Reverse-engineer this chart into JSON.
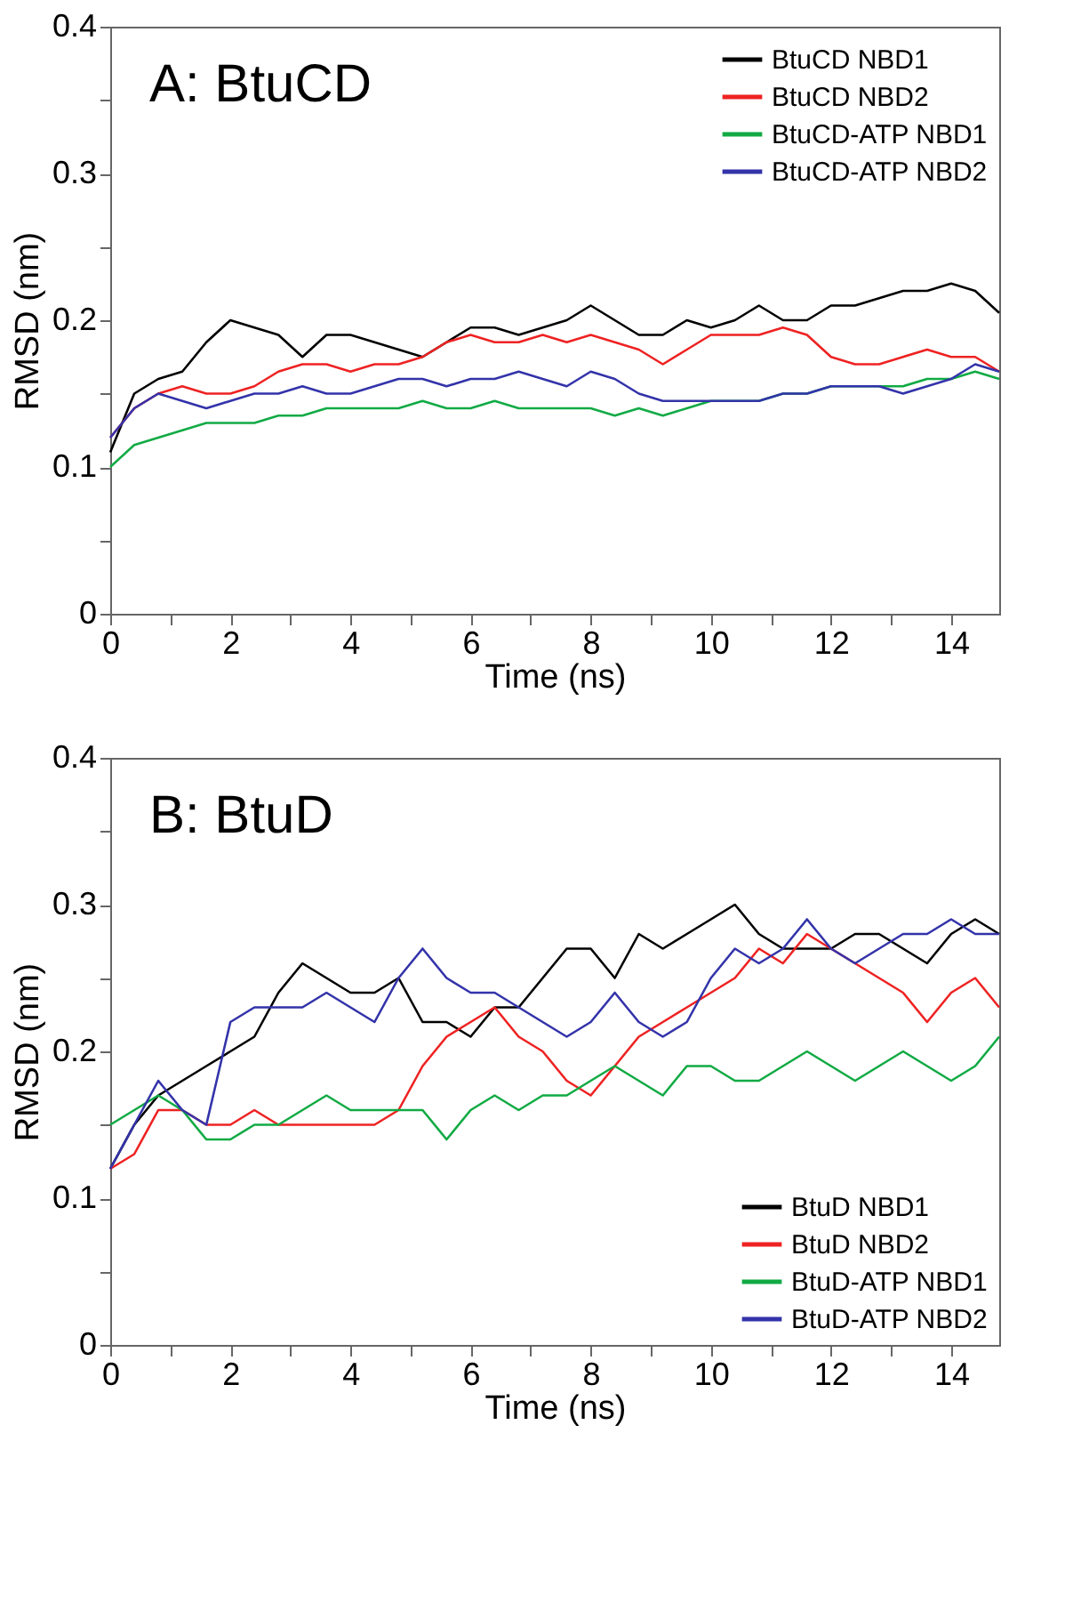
{
  "chart_data": [
    {
      "type": "line",
      "title": null,
      "annotations": [
        "A: BtuCD"
      ],
      "xlabel": "Time (ns)",
      "ylabel": "RMSD (nm)",
      "legend": "top right",
      "grid": false,
      "marker": "none",
      "line_style": "solid",
      "x": [
        0,
        0.4,
        0.8,
        1.2,
        1.6,
        2.0,
        2.4,
        2.8,
        3.2,
        3.6,
        4.0,
        4.4,
        4.8,
        5.2,
        5.6,
        6.0,
        6.4,
        6.8,
        7.2,
        7.6,
        8.0,
        8.4,
        8.8,
        9.2,
        9.6,
        10.0,
        10.4,
        10.8,
        11.2,
        11.6,
        12.0,
        12.4,
        12.8,
        13.2,
        13.6,
        14.0,
        14.4,
        14.8
      ],
      "xlim": [
        0,
        14.8
      ],
      "xticks": [
        0,
        {
          "value": 1,
          "label": null
        },
        2,
        {
          "value": 3,
          "label": null
        },
        4,
        {
          "value": 5,
          "label": null
        },
        6,
        {
          "value": 7,
          "label": null
        },
        8,
        {
          "value": 9,
          "label": null
        },
        10,
        {
          "value": 11,
          "label": null
        },
        12,
        {
          "value": 13,
          "label": null
        },
        14
      ],
      "ylim": [
        0,
        0.4
      ],
      "yticks": [
        0,
        {
          "value": 0.05,
          "label": null
        },
        0.1,
        {
          "value": 0.15,
          "label": null
        },
        0.2,
        {
          "value": 0.25,
          "label": null
        },
        0.3,
        {
          "value": 0.35,
          "label": null
        },
        0.4
      ],
      "series": [
        {
          "name": "BtuCD NBD1",
          "color": "#000000",
          "values": [
            0.11,
            0.15,
            0.16,
            0.165,
            0.185,
            0.2,
            0.195,
            0.19,
            0.175,
            0.19,
            0.19,
            0.185,
            0.18,
            0.175,
            0.185,
            0.195,
            0.195,
            0.19,
            0.195,
            0.2,
            0.21,
            0.2,
            0.19,
            0.19,
            0.2,
            0.195,
            0.2,
            0.21,
            0.2,
            0.2,
            0.21,
            0.21,
            0.215,
            0.22,
            0.22,
            0.225,
            0.22,
            0.205
          ]
        },
        {
          "name": "BtuCD NBD2",
          "color": "#ee2222",
          "values": [
            0.12,
            0.14,
            0.15,
            0.155,
            0.15,
            0.15,
            0.155,
            0.165,
            0.17,
            0.17,
            0.165,
            0.17,
            0.17,
            0.175,
            0.185,
            0.19,
            0.185,
            0.185,
            0.19,
            0.185,
            0.19,
            0.185,
            0.18,
            0.17,
            0.18,
            0.19,
            0.19,
            0.19,
            0.195,
            0.19,
            0.175,
            0.17,
            0.17,
            0.175,
            0.18,
            0.175,
            0.175,
            0.165
          ]
        },
        {
          "name": "BtuCD-ATP NBD1",
          "color": "#11aa44",
          "values": [
            0.1,
            0.115,
            0.12,
            0.125,
            0.13,
            0.13,
            0.13,
            0.135,
            0.135,
            0.14,
            0.14,
            0.14,
            0.14,
            0.145,
            0.14,
            0.14,
            0.145,
            0.14,
            0.14,
            0.14,
            0.14,
            0.135,
            0.14,
            0.135,
            0.14,
            0.145,
            0.145,
            0.145,
            0.15,
            0.15,
            0.155,
            0.155,
            0.155,
            0.155,
            0.16,
            0.16,
            0.165,
            0.16
          ]
        },
        {
          "name": "BtuCD-ATP NBD2",
          "color": "#3333aa",
          "values": [
            0.12,
            0.14,
            0.15,
            0.145,
            0.14,
            0.145,
            0.15,
            0.15,
            0.155,
            0.15,
            0.15,
            0.155,
            0.16,
            0.16,
            0.155,
            0.16,
            0.16,
            0.165,
            0.16,
            0.155,
            0.165,
            0.16,
            0.15,
            0.145,
            0.145,
            0.145,
            0.145,
            0.145,
            0.15,
            0.15,
            0.155,
            0.155,
            0.155,
            0.15,
            0.155,
            0.16,
            0.17,
            0.165
          ]
        }
      ]
    },
    {
      "type": "line",
      "title": null,
      "annotations": [
        "B: BtuD"
      ],
      "xlabel": "Time (ns)",
      "ylabel": "RMSD (nm)",
      "legend": "bottom right",
      "grid": false,
      "marker": "none",
      "line_style": "solid",
      "x": [
        0,
        0.4,
        0.8,
        1.2,
        1.6,
        2.0,
        2.4,
        2.8,
        3.2,
        3.6,
        4.0,
        4.4,
        4.8,
        5.2,
        5.6,
        6.0,
        6.4,
        6.8,
        7.2,
        7.6,
        8.0,
        8.4,
        8.8,
        9.2,
        9.6,
        10.0,
        10.4,
        10.8,
        11.2,
        11.6,
        12.0,
        12.4,
        12.8,
        13.2,
        13.6,
        14.0,
        14.4,
        14.8
      ],
      "xlim": [
        0,
        14.8
      ],
      "xticks": [
        0,
        {
          "value": 1,
          "label": null
        },
        2,
        {
          "value": 3,
          "label": null
        },
        4,
        {
          "value": 5,
          "label": null
        },
        6,
        {
          "value": 7,
          "label": null
        },
        8,
        {
          "value": 9,
          "label": null
        },
        10,
        {
          "value": 11,
          "label": null
        },
        12,
        {
          "value": 13,
          "label": null
        },
        14
      ],
      "ylim": [
        0,
        0.4
      ],
      "yticks": [
        0,
        {
          "value": 0.05,
          "label": null
        },
        0.1,
        {
          "value": 0.15,
          "label": null
        },
        0.2,
        {
          "value": 0.25,
          "label": null
        },
        0.3,
        {
          "value": 0.35,
          "label": null
        },
        0.4
      ],
      "series": [
        {
          "name": "BtuD NBD1",
          "color": "#000000",
          "values": [
            0.12,
            0.15,
            0.17,
            0.18,
            0.19,
            0.2,
            0.21,
            0.24,
            0.26,
            0.25,
            0.24,
            0.24,
            0.25,
            0.22,
            0.22,
            0.21,
            0.23,
            0.23,
            0.25,
            0.27,
            0.27,
            0.25,
            0.28,
            0.27,
            0.28,
            0.29,
            0.3,
            0.28,
            0.27,
            0.27,
            0.27,
            0.28,
            0.28,
            0.27,
            0.26,
            0.28,
            0.29,
            0.28
          ]
        },
        {
          "name": "BtuD NBD2",
          "color": "#ee2222",
          "values": [
            0.12,
            0.13,
            0.16,
            0.16,
            0.15,
            0.15,
            0.16,
            0.15,
            0.15,
            0.15,
            0.15,
            0.15,
            0.16,
            0.19,
            0.21,
            0.22,
            0.23,
            0.21,
            0.2,
            0.18,
            0.17,
            0.19,
            0.21,
            0.22,
            0.23,
            0.24,
            0.25,
            0.27,
            0.26,
            0.28,
            0.27,
            0.26,
            0.25,
            0.24,
            0.22,
            0.24,
            0.25,
            0.23
          ]
        },
        {
          "name": "BtuD-ATP NBD1",
          "color": "#11aa44",
          "values": [
            0.15,
            0.16,
            0.17,
            0.16,
            0.14,
            0.14,
            0.15,
            0.15,
            0.16,
            0.17,
            0.16,
            0.16,
            0.16,
            0.16,
            0.14,
            0.16,
            0.17,
            0.16,
            0.17,
            0.17,
            0.18,
            0.19,
            0.18,
            0.17,
            0.19,
            0.19,
            0.18,
            0.18,
            0.19,
            0.2,
            0.19,
            0.18,
            0.19,
            0.2,
            0.19,
            0.18,
            0.19,
            0.21
          ]
        },
        {
          "name": "BtuD-ATP NBD2",
          "color": "#3333aa",
          "values": [
            0.12,
            0.15,
            0.18,
            0.16,
            0.15,
            0.22,
            0.23,
            0.23,
            0.23,
            0.24,
            0.23,
            0.22,
            0.25,
            0.27,
            0.25,
            0.24,
            0.24,
            0.23,
            0.22,
            0.21,
            0.22,
            0.24,
            0.22,
            0.21,
            0.22,
            0.25,
            0.27,
            0.26,
            0.27,
            0.29,
            0.27,
            0.26,
            0.27,
            0.28,
            0.28,
            0.29,
            0.28,
            0.28
          ]
        }
      ]
    }
  ]
}
